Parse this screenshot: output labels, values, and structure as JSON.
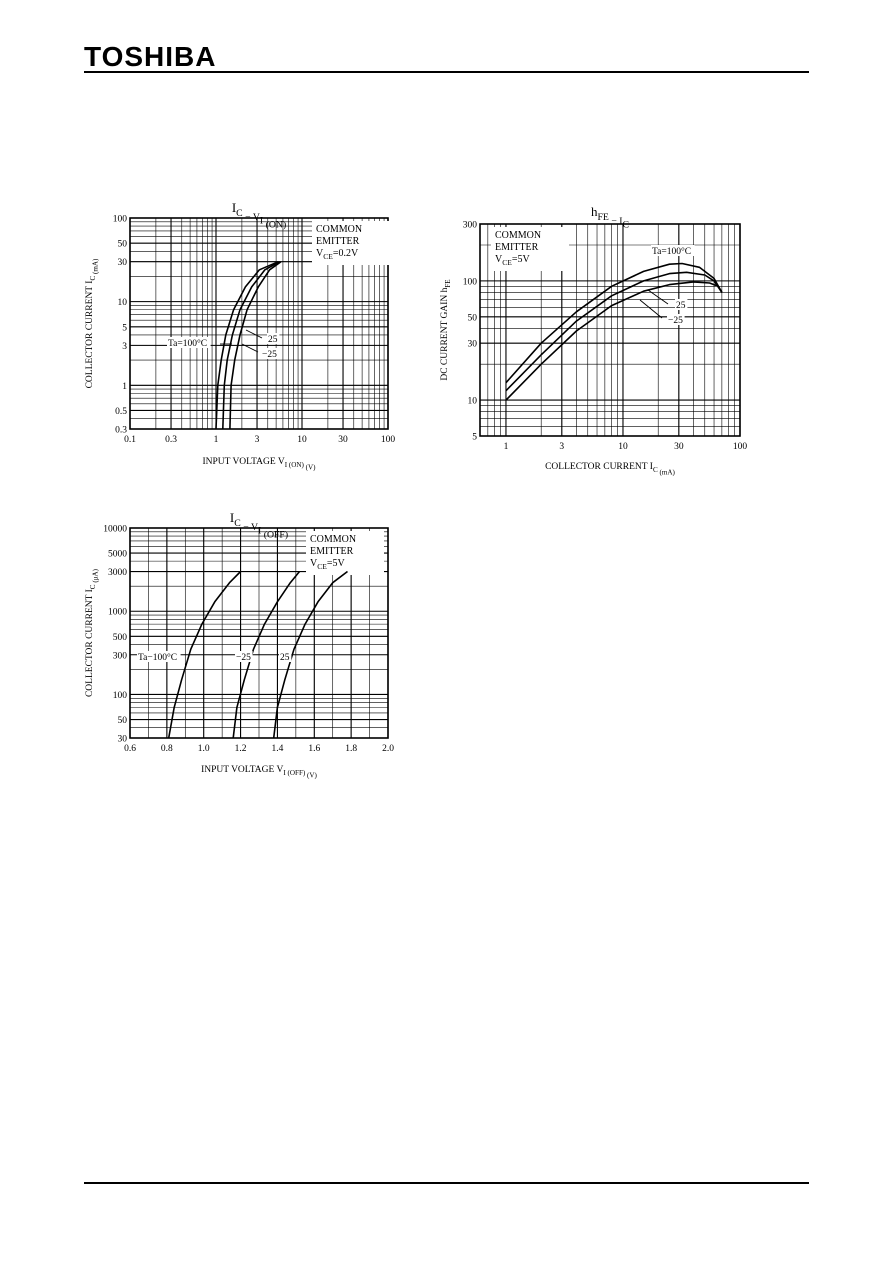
{
  "header": {
    "brand": "TOSHIBA"
  },
  "chart_data": [
    {
      "type": "line",
      "title": "IC − VI (ON)",
      "title_main": "I",
      "title_sub1": "C",
      "title_mid": " − V",
      "title_sub2": "I",
      "title_tail": " (ON)",
      "xlabel": "INPUT VOLTAGE   V",
      "xlabel_sub": "I (ON)",
      "xlabel_tail": "   (V)",
      "ylabel": "COLLECTOR CURRENT   I",
      "ylabel_sub": "C",
      "ylabel_tail": "   (mA)",
      "x_scale": "log",
      "y_scale": "log",
      "xlim": [
        0.1,
        100
      ],
      "ylim": [
        0.3,
        100
      ],
      "x_ticks": [
        0.1,
        0.3,
        1,
        3,
        10,
        30,
        100
      ],
      "x_tick_labels": [
        "0.1",
        "0.3",
        "1",
        "3",
        "10",
        "30",
        "100"
      ],
      "y_ticks": [
        0.3,
        0.5,
        1,
        3,
        5,
        10,
        30,
        50,
        100
      ],
      "y_tick_labels": [
        "0.3",
        "0.5",
        "1",
        "3",
        "5",
        "10",
        "30",
        "50",
        "100"
      ],
      "annotation_lines": [
        "COMMON",
        "EMITTER",
        "VCE=0.2V"
      ],
      "series": [
        {
          "name": "Ta=100°C",
          "x": [
            1.0,
            1.05,
            1.15,
            1.3,
            1.6,
            2.2,
            3.2,
            5.3
          ],
          "y": [
            0.3,
            1,
            2,
            4,
            8,
            15,
            24,
            30
          ]
        },
        {
          "name": "25",
          "x": [
            1.2,
            1.25,
            1.35,
            1.55,
            1.9,
            2.6,
            3.7,
            5.5
          ],
          "y": [
            0.3,
            1,
            2,
            4,
            8,
            15,
            24,
            30
          ]
        },
        {
          "name": "−25",
          "x": [
            1.45,
            1.5,
            1.65,
            1.9,
            2.3,
            3.1,
            4.2,
            5.7
          ],
          "y": [
            0.3,
            1,
            2,
            4,
            8,
            15,
            24,
            30
          ]
        }
      ],
      "series_labels": [
        "Ta=100°C",
        "25",
        "−25"
      ]
    },
    {
      "type": "line",
      "title": "hFE − IC",
      "title_main": "h",
      "title_sub1": "FE",
      "title_mid": " − I",
      "title_sub2": "C",
      "title_tail": "",
      "xlabel": "COLLECTOR CURRENT   I",
      "xlabel_sub": "C",
      "xlabel_tail": "   (mA)",
      "ylabel": "DC CURRENT GAIN   h",
      "ylabel_sub": "FE",
      "ylabel_tail": "",
      "x_scale": "log",
      "y_scale": "log",
      "xlim": [
        0.6,
        100
      ],
      "ylim": [
        5,
        300
      ],
      "x_ticks": [
        1,
        3,
        10,
        30,
        100
      ],
      "x_tick_labels": [
        "1",
        "3",
        "10",
        "30",
        "100"
      ],
      "y_ticks": [
        5,
        10,
        30,
        50,
        100,
        300
      ],
      "y_tick_labels": [
        "5",
        "10",
        "30",
        "50",
        "100",
        "300"
      ],
      "annotation_lines": [
        "COMMON",
        "EMITTER",
        "VCE=5V"
      ],
      "series": [
        {
          "name": "Ta=100°C",
          "x": [
            1,
            2,
            4,
            8,
            15,
            25,
            32,
            45,
            60,
            70
          ],
          "y": [
            14,
            30,
            55,
            90,
            120,
            138,
            140,
            130,
            105,
            80
          ]
        },
        {
          "name": "25",
          "x": [
            1,
            2,
            4,
            8,
            15,
            25,
            35,
            50,
            60,
            70
          ],
          "y": [
            12,
            24,
            46,
            75,
            100,
            115,
            118,
            112,
            100,
            80
          ]
        },
        {
          "name": "−25",
          "x": [
            1,
            2,
            4,
            8,
            15,
            25,
            40,
            55,
            65,
            70
          ],
          "y": [
            10,
            20,
            38,
            62,
            82,
            93,
            98,
            96,
            90,
            80
          ]
        }
      ],
      "series_labels": [
        "Ta=100°C",
        "25",
        "−25"
      ]
    },
    {
      "type": "line",
      "title": "IC − VI (OFF)",
      "title_main": "I",
      "title_sub1": "C",
      "title_mid": " − V",
      "title_sub2": "I",
      "title_tail": " (OFF)",
      "xlabel": "INPUT VOLTAGE   V",
      "xlabel_sub": "I (OFF)",
      "xlabel_tail": "   (V)",
      "ylabel": "COLLECTOR CURRENT   I",
      "ylabel_sub": "C",
      "ylabel_tail": "   (μA)",
      "x_scale": "linear",
      "y_scale": "log",
      "xlim": [
        0.6,
        2.0
      ],
      "ylim": [
        30,
        10000
      ],
      "x_ticks": [
        0.6,
        0.8,
        1.0,
        1.2,
        1.4,
        1.6,
        1.8,
        2.0
      ],
      "x_tick_labels": [
        "0.6",
        "0.8",
        "1.0",
        "1.2",
        "1.4",
        "1.6",
        "1.8",
        "2.0"
      ],
      "y_ticks": [
        30,
        50,
        100,
        300,
        500,
        1000,
        3000,
        5000,
        10000
      ],
      "y_tick_labels": [
        "30",
        "50",
        "100",
        "300",
        "500",
        "1000",
        "3000",
        "5000",
        "10000"
      ],
      "annotation_lines": [
        "COMMON",
        "EMITTER",
        "VCE=5V"
      ],
      "series": [
        {
          "name": "Ta=100°C",
          "x": [
            0.81,
            0.84,
            0.88,
            0.93,
            0.99,
            1.06,
            1.14,
            1.2
          ],
          "y": [
            30,
            70,
            150,
            350,
            700,
            1300,
            2200,
            3000
          ]
        },
        {
          "name": "−25",
          "x": [
            1.16,
            1.18,
            1.22,
            1.27,
            1.33,
            1.4,
            1.47,
            1.52
          ],
          "y": [
            30,
            70,
            150,
            350,
            700,
            1300,
            2200,
            3000
          ]
        },
        {
          "name": "25",
          "x": [
            1.38,
            1.4,
            1.44,
            1.49,
            1.55,
            1.62,
            1.7,
            1.78
          ],
          "y": [
            30,
            70,
            150,
            350,
            700,
            1300,
            2200,
            3000
          ]
        }
      ],
      "series_labels": [
        "Ta−100°C",
        "−25",
        "25"
      ]
    }
  ]
}
